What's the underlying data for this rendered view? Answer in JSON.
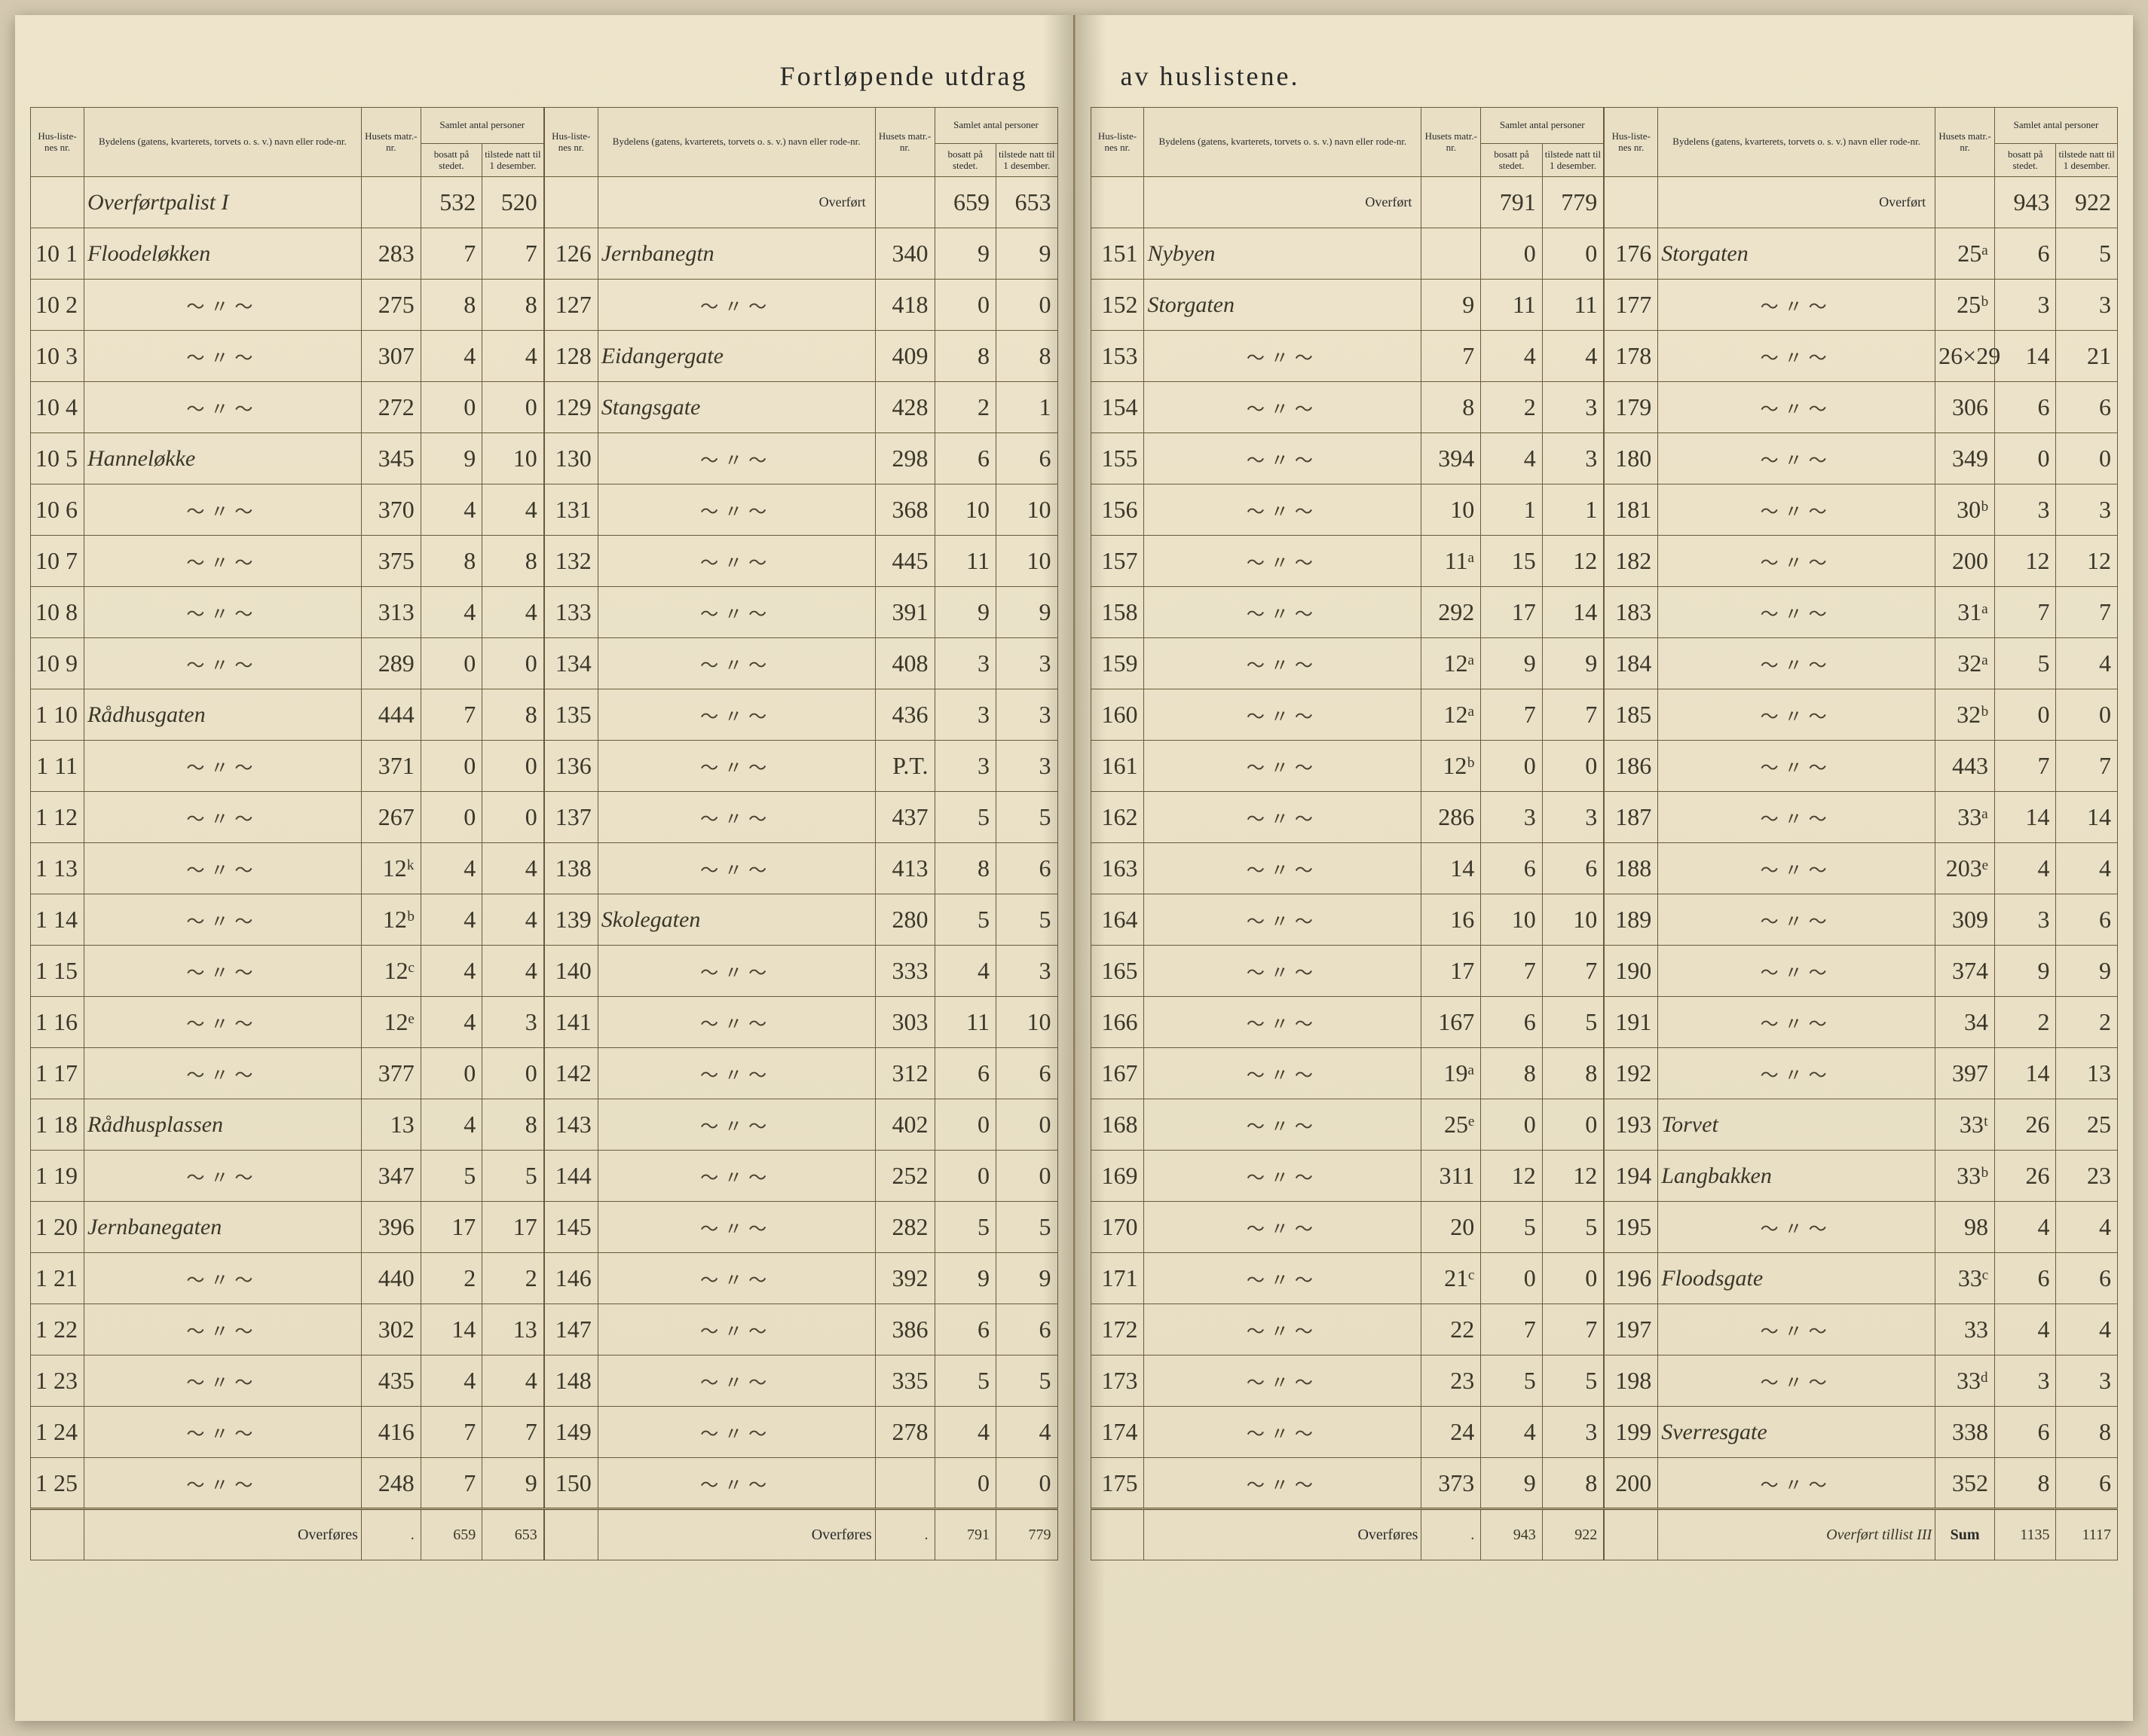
{
  "title_left": "Fortløpende utdrag",
  "title_right": "av huslistene.",
  "headers": {
    "huslist": "Hus-liste-nes nr.",
    "bydel": "Bydelens (gatens, kvarterets, torvets o. s. v.) navn eller rode-nr.",
    "husets": "Husets matr.-nr.",
    "samlet": "Samlet antal personer",
    "bosatt": "bosatt på stedet.",
    "tilstede": "tilstede natt til 1 desember."
  },
  "overfort_label": "Overført",
  "overfores_label": "Overføres",
  "sum_label": "Sum",
  "sum_note": "Overført tillist III",
  "col1": {
    "heading": "Overførtpalist I",
    "heading_bosatt": "532",
    "heading_tilstede": "520",
    "rows": [
      {
        "nr": "10 1",
        "name": "Floodeløkken",
        "matr": "283",
        "b": "7",
        "t": "7"
      },
      {
        "nr": "10 2",
        "name": "",
        "matr": "275",
        "b": "8",
        "t": "8"
      },
      {
        "nr": "10 3",
        "name": "",
        "matr": "307",
        "b": "4",
        "t": "4"
      },
      {
        "nr": "10 4",
        "name": "",
        "matr": "272",
        "b": "0",
        "t": "0"
      },
      {
        "nr": "10 5",
        "name": "Hanneløkke",
        "matr": "345",
        "b": "9",
        "t": "10"
      },
      {
        "nr": "10 6",
        "name": "",
        "matr": "370",
        "b": "4",
        "t": "4"
      },
      {
        "nr": "10 7",
        "name": "",
        "matr": "375",
        "b": "8",
        "t": "8"
      },
      {
        "nr": "10 8",
        "name": "",
        "matr": "313",
        "b": "4",
        "t": "4"
      },
      {
        "nr": "10 9",
        "name": "",
        "matr": "289",
        "b": "0",
        "t": "0"
      },
      {
        "nr": "1 10",
        "name": "Rådhusgaten",
        "matr": "444",
        "b": "7",
        "t": "8"
      },
      {
        "nr": "1 11",
        "name": "",
        "matr": "371",
        "b": "0",
        "t": "0"
      },
      {
        "nr": "1 12",
        "name": "",
        "matr": "267",
        "b": "0",
        "t": "0"
      },
      {
        "nr": "1 13",
        "name": "",
        "matr": "12ᵏ",
        "b": "4",
        "t": "4"
      },
      {
        "nr": "1 14",
        "name": "",
        "matr": "12ᵇ",
        "b": "4",
        "t": "4"
      },
      {
        "nr": "1 15",
        "name": "",
        "matr": "12ᶜ",
        "b": "4",
        "t": "4"
      },
      {
        "nr": "1 16",
        "name": "",
        "matr": "12ᵉ",
        "b": "4",
        "t": "3"
      },
      {
        "nr": "1 17",
        "name": "",
        "matr": "377",
        "b": "0",
        "t": "0"
      },
      {
        "nr": "1 18",
        "name": "Rådhusplassen",
        "matr": "13",
        "b": "4",
        "t": "8"
      },
      {
        "nr": "1 19",
        "name": "",
        "matr": "347",
        "b": "5",
        "t": "5"
      },
      {
        "nr": "1 20",
        "name": "Jernbanegaten",
        "matr": "396",
        "b": "17",
        "t": "17"
      },
      {
        "nr": "1 21",
        "name": "",
        "matr": "440",
        "b": "2",
        "t": "2"
      },
      {
        "nr": "1 22",
        "name": "",
        "matr": "302",
        "b": "14",
        "t": "13"
      },
      {
        "nr": "1 23",
        "name": "",
        "matr": "435",
        "b": "4",
        "t": "4"
      },
      {
        "nr": "1 24",
        "name": "",
        "matr": "416",
        "b": "7",
        "t": "7"
      },
      {
        "nr": "1 25",
        "name": "",
        "matr": "248",
        "b": "7",
        "t": "9"
      }
    ],
    "footer": {
      "b": "659",
      "t": "653"
    }
  },
  "col2": {
    "overfort": {
      "b": "659",
      "t": "653"
    },
    "rows": [
      {
        "nr": "126",
        "name": "Jernbanegtn",
        "matr": "340",
        "b": "9",
        "t": "9"
      },
      {
        "nr": "127",
        "name": "",
        "matr": "418",
        "b": "0",
        "t": "0"
      },
      {
        "nr": "128",
        "name": "Eidangergate",
        "matr": "409",
        "b": "8",
        "t": "8"
      },
      {
        "nr": "129",
        "name": "Stangsgate",
        "matr": "428",
        "b": "2",
        "t": "1"
      },
      {
        "nr": "130",
        "name": "",
        "matr": "298",
        "b": "6",
        "t": "6"
      },
      {
        "nr": "131",
        "name": "",
        "matr": "368",
        "b": "10",
        "t": "10"
      },
      {
        "nr": "132",
        "name": "",
        "matr": "445",
        "b": "11",
        "t": "10"
      },
      {
        "nr": "133",
        "name": "",
        "matr": "391",
        "b": "9",
        "t": "9"
      },
      {
        "nr": "134",
        "name": "",
        "matr": "408",
        "b": "3",
        "t": "3"
      },
      {
        "nr": "135",
        "name": "",
        "matr": "436",
        "b": "3",
        "t": "3"
      },
      {
        "nr": "136",
        "name": "",
        "matr": "P.T.",
        "b": "3",
        "t": "3"
      },
      {
        "nr": "137",
        "name": "",
        "matr": "437",
        "b": "5",
        "t": "5"
      },
      {
        "nr": "138",
        "name": "",
        "matr": "413",
        "b": "8",
        "t": "6"
      },
      {
        "nr": "139",
        "name": "Skolegaten",
        "matr": "280",
        "b": "5",
        "t": "5"
      },
      {
        "nr": "140",
        "name": "",
        "matr": "333",
        "b": "4",
        "t": "3"
      },
      {
        "nr": "141",
        "name": "",
        "matr": "303",
        "b": "11",
        "t": "10"
      },
      {
        "nr": "142",
        "name": "",
        "matr": "312",
        "b": "6",
        "t": "6"
      },
      {
        "nr": "143",
        "name": "",
        "matr": "402",
        "b": "0",
        "t": "0"
      },
      {
        "nr": "144",
        "name": "",
        "matr": "252",
        "b": "0",
        "t": "0"
      },
      {
        "nr": "145",
        "name": "",
        "matr": "282",
        "b": "5",
        "t": "5"
      },
      {
        "nr": "146",
        "name": "",
        "matr": "392",
        "b": "9",
        "t": "9"
      },
      {
        "nr": "147",
        "name": "",
        "matr": "386",
        "b": "6",
        "t": "6"
      },
      {
        "nr": "148",
        "name": "",
        "matr": "335",
        "b": "5",
        "t": "5"
      },
      {
        "nr": "149",
        "name": "",
        "matr": "278",
        "b": "4",
        "t": "4"
      },
      {
        "nr": "150",
        "name": "",
        "matr": "",
        "b": "0",
        "t": "0"
      }
    ],
    "footer": {
      "b": "791",
      "t": "779"
    }
  },
  "col3": {
    "overfort": {
      "b": "791",
      "t": "779"
    },
    "rows": [
      {
        "nr": "151",
        "name": "Nybyen",
        "matr": "",
        "b": "0",
        "t": "0"
      },
      {
        "nr": "152",
        "name": "Storgaten",
        "matr": "9",
        "b": "11",
        "t": "11"
      },
      {
        "nr": "153",
        "name": "",
        "matr": "7",
        "b": "4",
        "t": "4"
      },
      {
        "nr": "154",
        "name": "",
        "matr": "8",
        "b": "2",
        "t": "3"
      },
      {
        "nr": "155",
        "name": "",
        "matr": "394",
        "b": "4",
        "t": "3"
      },
      {
        "nr": "156",
        "name": "",
        "matr": "10",
        "b": "1",
        "t": "1"
      },
      {
        "nr": "157",
        "name": "",
        "matr": "11ᵃ",
        "b": "15",
        "t": "12"
      },
      {
        "nr": "158",
        "name": "",
        "matr": "292",
        "b": "17",
        "t": "14"
      },
      {
        "nr": "159",
        "name": "",
        "matr": "12ᵃ",
        "b": "9",
        "t": "9"
      },
      {
        "nr": "160",
        "name": "",
        "matr": "12ᵃ",
        "b": "7",
        "t": "7"
      },
      {
        "nr": "161",
        "name": "",
        "matr": "12ᵇ",
        "b": "0",
        "t": "0"
      },
      {
        "nr": "162",
        "name": "",
        "matr": "286",
        "b": "3",
        "t": "3"
      },
      {
        "nr": "163",
        "name": "",
        "matr": "14",
        "b": "6",
        "t": "6"
      },
      {
        "nr": "164",
        "name": "",
        "matr": "16",
        "b": "10",
        "t": "10"
      },
      {
        "nr": "165",
        "name": "",
        "matr": "17",
        "b": "7",
        "t": "7"
      },
      {
        "nr": "166",
        "name": "",
        "matr": "167",
        "b": "6",
        "t": "5"
      },
      {
        "nr": "167",
        "name": "",
        "matr": "19ᵃ",
        "b": "8",
        "t": "8"
      },
      {
        "nr": "168",
        "name": "",
        "matr": "25ᵉ",
        "b": "0",
        "t": "0"
      },
      {
        "nr": "169",
        "name": "",
        "matr": "311",
        "b": "12",
        "t": "12"
      },
      {
        "nr": "170",
        "name": "",
        "matr": "20",
        "b": "5",
        "t": "5"
      },
      {
        "nr": "171",
        "name": "",
        "matr": "21ᶜ",
        "b": "0",
        "t": "0"
      },
      {
        "nr": "172",
        "name": "",
        "matr": "22",
        "b": "7",
        "t": "7"
      },
      {
        "nr": "173",
        "name": "",
        "matr": "23",
        "b": "5",
        "t": "5"
      },
      {
        "nr": "174",
        "name": "",
        "matr": "24",
        "b": "4",
        "t": "3"
      },
      {
        "nr": "175",
        "name": "",
        "matr": "373",
        "b": "9",
        "t": "8"
      }
    ],
    "footer": {
      "b": "943",
      "t": "922"
    }
  },
  "col4": {
    "overfort": {
      "b": "943",
      "t": "922"
    },
    "rows": [
      {
        "nr": "176",
        "name": "Storgaten",
        "matr": "25ᵃ",
        "b": "6",
        "t": "5"
      },
      {
        "nr": "177",
        "name": "",
        "matr": "25ᵇ",
        "b": "3",
        "t": "3"
      },
      {
        "nr": "178",
        "name": "",
        "matr": "26×29",
        "b": "14",
        "t": "21"
      },
      {
        "nr": "179",
        "name": "",
        "matr": "306",
        "b": "6",
        "t": "6"
      },
      {
        "nr": "180",
        "name": "",
        "matr": "349",
        "b": "0",
        "t": "0"
      },
      {
        "nr": "181",
        "name": "",
        "matr": "30ᵇ",
        "b": "3",
        "t": "3"
      },
      {
        "nr": "182",
        "name": "",
        "matr": "200",
        "b": "12",
        "t": "12"
      },
      {
        "nr": "183",
        "name": "",
        "matr": "31ᵃ",
        "b": "7",
        "t": "7"
      },
      {
        "nr": "184",
        "name": "",
        "matr": "32ᵃ",
        "b": "5",
        "t": "4"
      },
      {
        "nr": "185",
        "name": "",
        "matr": "32ᵇ",
        "b": "0",
        "t": "0"
      },
      {
        "nr": "186",
        "name": "",
        "matr": "443",
        "b": "7",
        "t": "7"
      },
      {
        "nr": "187",
        "name": "",
        "matr": "33ᵃ",
        "b": "14",
        "t": "14"
      },
      {
        "nr": "188",
        "name": "",
        "matr": "203ᵉ",
        "b": "4",
        "t": "4"
      },
      {
        "nr": "189",
        "name": "",
        "matr": "309",
        "b": "3",
        "t": "6"
      },
      {
        "nr": "190",
        "name": "",
        "matr": "374",
        "b": "9",
        "t": "9"
      },
      {
        "nr": "191",
        "name": "",
        "matr": "34",
        "b": "2",
        "t": "2"
      },
      {
        "nr": "192",
        "name": "",
        "matr": "397",
        "b": "14",
        "t": "13"
      },
      {
        "nr": "193",
        "name": "Torvet",
        "matr": "33ᵗ",
        "b": "26",
        "t": "25"
      },
      {
        "nr": "194",
        "name": "Langbakken",
        "matr": "33ᵇ",
        "b": "26",
        "t": "23"
      },
      {
        "nr": "195",
        "name": "",
        "matr": "98",
        "b": "4",
        "t": "4"
      },
      {
        "nr": "196",
        "name": "Floodsgate",
        "matr": "33ᶜ",
        "b": "6",
        "t": "6"
      },
      {
        "nr": "197",
        "name": "",
        "matr": "33",
        "b": "4",
        "t": "4"
      },
      {
        "nr": "198",
        "name": "",
        "matr": "33ᵈ",
        "b": "3",
        "t": "3"
      },
      {
        "nr": "199",
        "name": "Sverresgate",
        "matr": "338",
        "b": "6",
        "t": "8"
      },
      {
        "nr": "200",
        "name": "",
        "matr": "352",
        "b": "8",
        "t": "6"
      }
    ],
    "footer": {
      "b": "1135",
      "t": "1117"
    }
  }
}
